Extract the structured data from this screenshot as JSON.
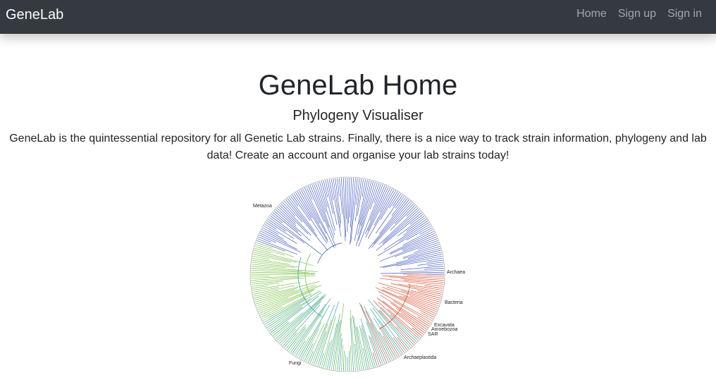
{
  "navbar": {
    "brand": "GeneLab",
    "links": [
      {
        "label": "Home"
      },
      {
        "label": "Sign up"
      },
      {
        "label": "Sign in"
      }
    ]
  },
  "main": {
    "title": "GeneLab Home",
    "subtitle": "Phylogeny Visualiser",
    "description": "GeneLab is the quintessential repository for all Genetic Lab strains. Finally, there is a nice way to track strain information, phylogeny and lab data! Create an account and organise your lab strains today!"
  },
  "tree_image": {
    "clade_labels": [
      "Metazoa",
      "Archaea",
      "Bacteria",
      "Excavata",
      "Amoebozoa",
      "SAR",
      "Archaeplastida",
      "Fungi"
    ],
    "colors": {
      "archaea_bacteria": "#d9502f",
      "metazoa": "#4a5fc1",
      "fungi": "#7fc24a",
      "other": "#3aa6a0"
    }
  }
}
